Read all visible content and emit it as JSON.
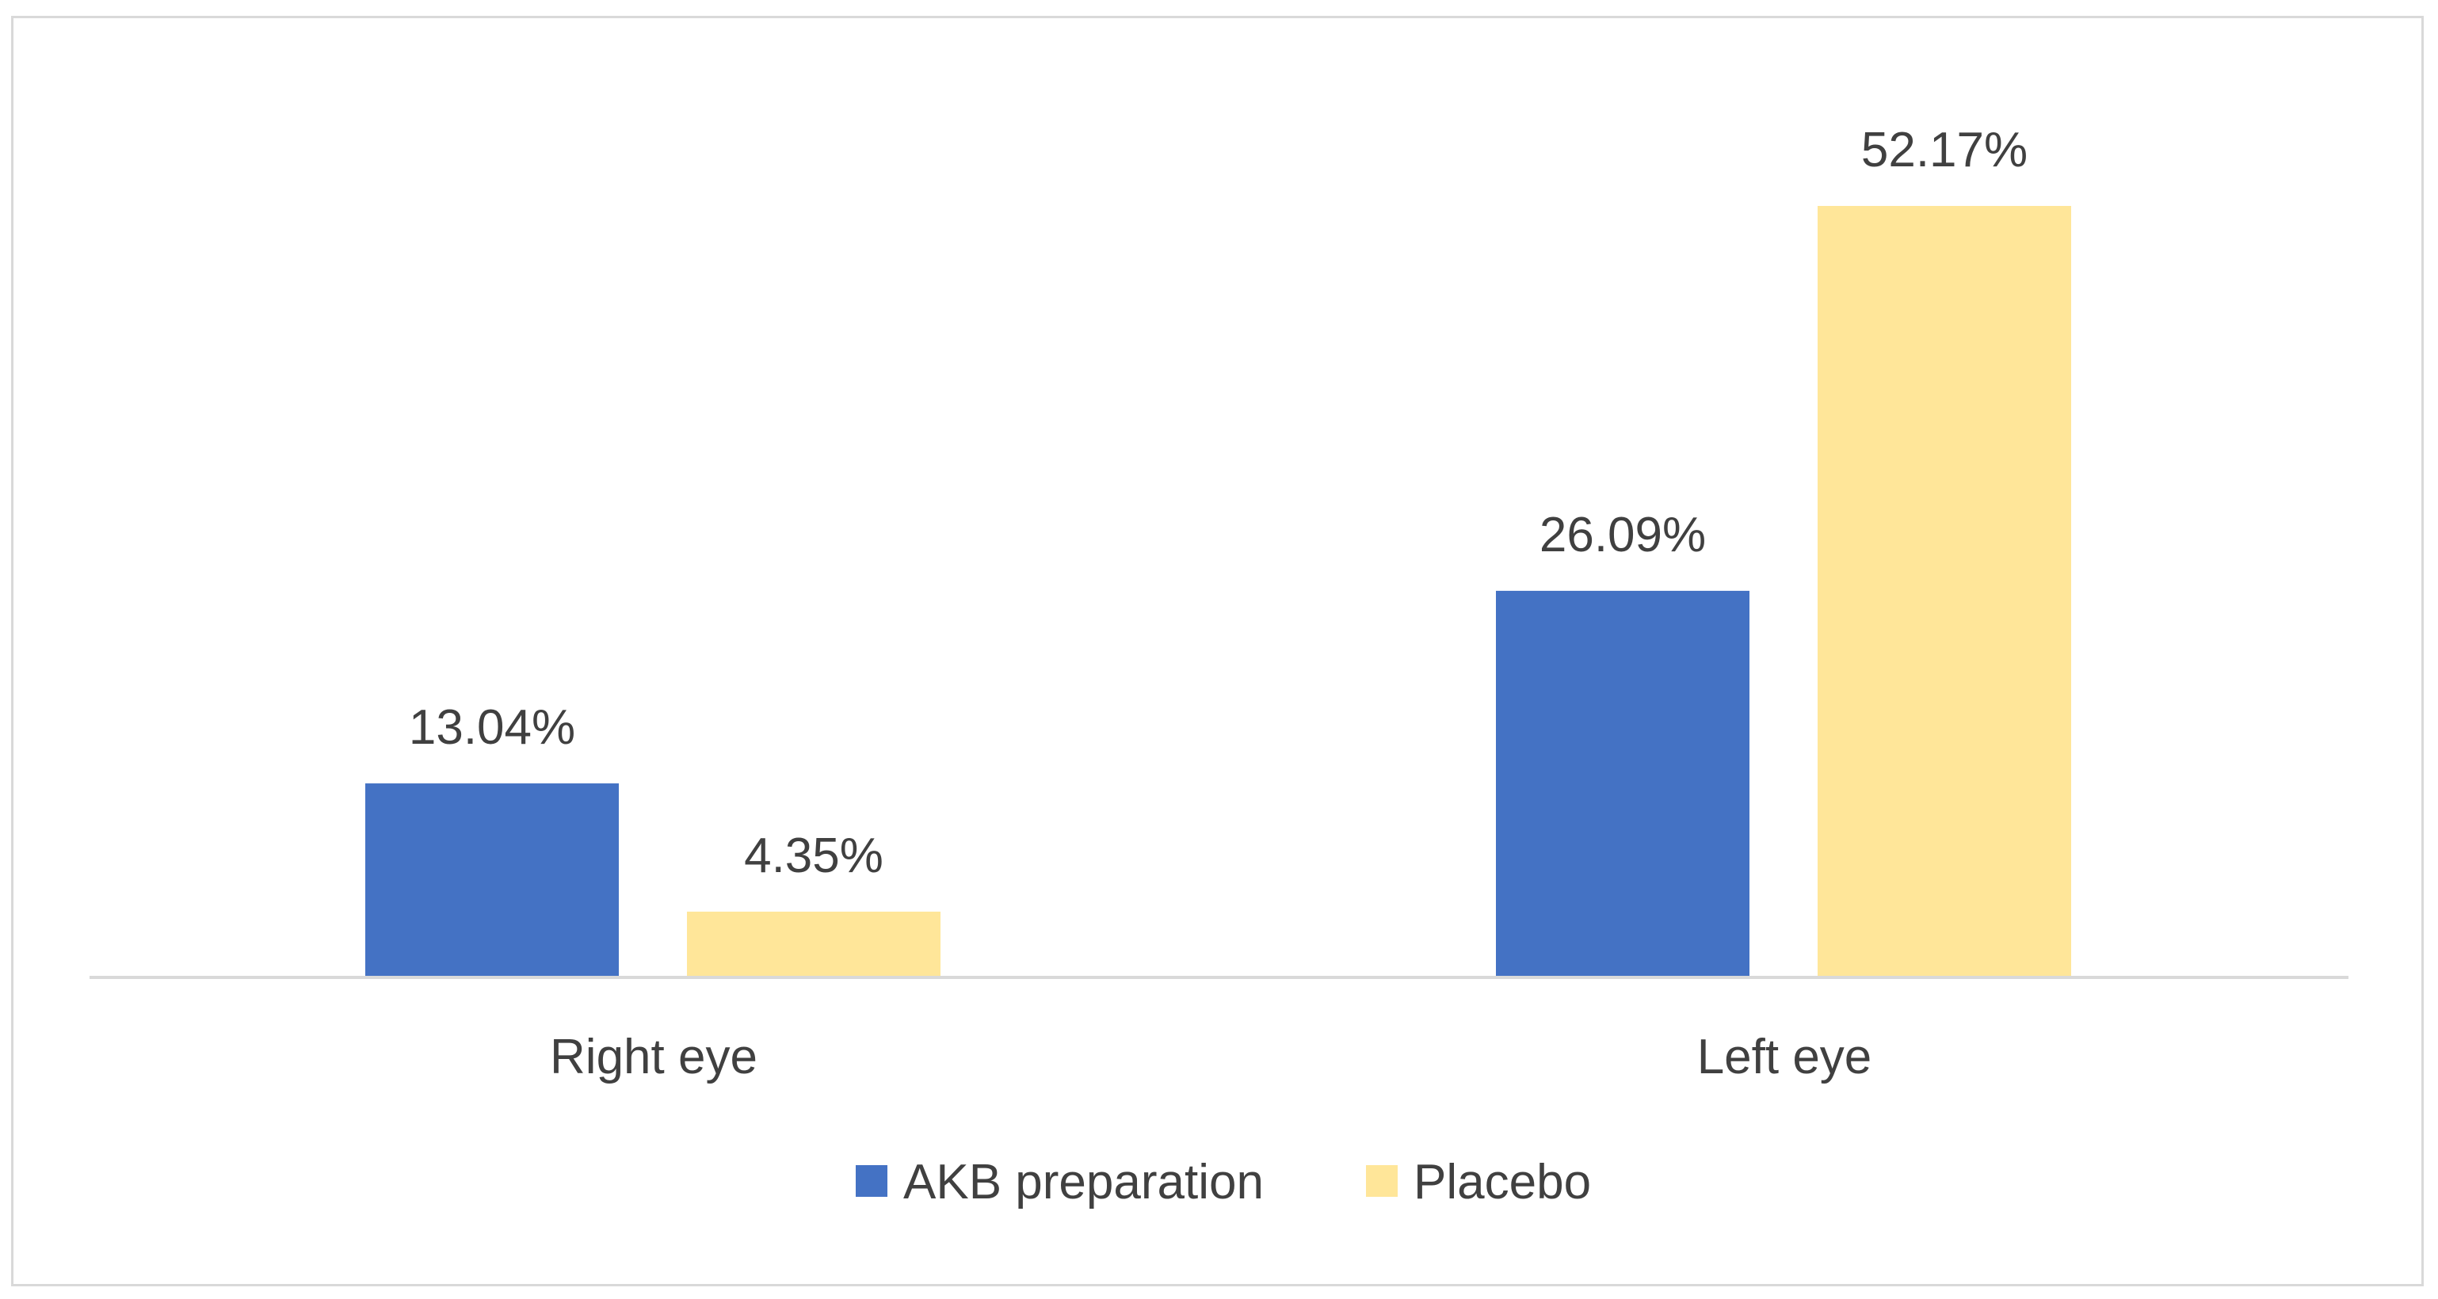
{
  "chart_data": {
    "type": "bar",
    "categories": [
      "Right eye",
      "Left eye"
    ],
    "series": [
      {
        "name": "AKB preparation",
        "values": [
          13.04,
          26.09
        ],
        "color": "#4472c4"
      },
      {
        "name": "Placebo",
        "values": [
          4.35,
          52.17
        ],
        "color": "#ffe699"
      }
    ],
    "value_labels": [
      [
        "13.04%",
        "26.09%"
      ],
      [
        "4.35%",
        "52.17%"
      ]
    ],
    "title": "",
    "xlabel": "",
    "ylabel": "",
    "ylim": [
      0,
      52.17
    ],
    "grid": false,
    "y_axis_visible": false,
    "legend_position": "bottom",
    "axis_color": "#d9d9d9",
    "label_color": "#404040"
  }
}
